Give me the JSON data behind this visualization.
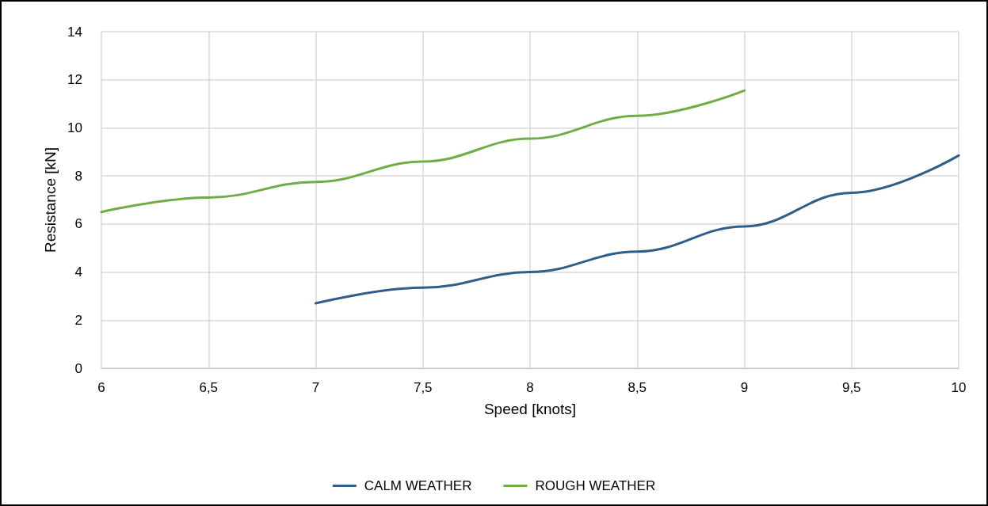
{
  "chart_data": {
    "type": "line",
    "xlabel": "Speed [knots]",
    "ylabel": "Resistance [kN]",
    "xlim": [
      6,
      10
    ],
    "xticks": [
      6,
      {
        "value": 6.5,
        "label": "6,5"
      },
      7,
      {
        "value": 7.5,
        "label": "7,5"
      },
      8,
      {
        "value": 8.5,
        "label": "8,5"
      },
      9,
      {
        "value": 9.5,
        "label": "9,5"
      },
      10
    ],
    "ylim": [
      0,
      14
    ],
    "yticks": [
      0,
      2,
      4,
      6,
      8,
      10,
      12,
      14
    ],
    "grid": true,
    "legend": "bottom",
    "marker": "none",
    "line_style": "solid",
    "series": [
      {
        "name": "CALM WEATHER",
        "color": "#2e5f8a",
        "x": [
          7,
          7.5,
          8,
          8.5,
          9,
          9.5,
          10
        ],
        "values": [
          2.7,
          3.35,
          4.0,
          4.85,
          5.9,
          7.3,
          8.85
        ]
      },
      {
        "name": "ROUGH WEATHER",
        "color": "#70ad47",
        "x": [
          6,
          6.5,
          7,
          7.5,
          8,
          8.5,
          9
        ],
        "values": [
          6.5,
          7.1,
          7.75,
          8.6,
          9.55,
          10.5,
          11.55
        ]
      }
    ]
  }
}
